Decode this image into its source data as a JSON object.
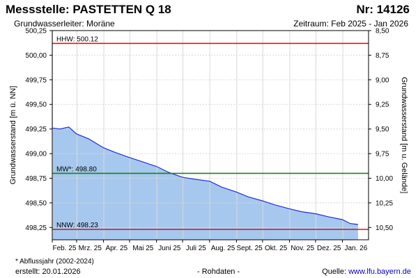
{
  "header": {
    "title": "Messstelle: PASTETTEN Q 18",
    "number": "Nr: 14126",
    "aquifer": "Grundwasserleiter:   Moräne",
    "period": "Zeitraum: Feb 2025 - Jan 2026"
  },
  "footer": {
    "footnote": "* Abflussjahr (2002-2024)",
    "created": "erstellt:  20.01.2026",
    "raw": "- Rohdaten -",
    "source_label": "Quelle: ",
    "source_url": "www.lfu.bayern.de"
  },
  "colors": {
    "fill": "#a7c8ee",
    "line": "#1f2fd6",
    "hhw": "#e01010",
    "nnw": "#e01010",
    "mw": "#0a8a0a",
    "grid": "#d8d8d8"
  },
  "chart_data": {
    "type": "area",
    "ylabel_left": "Grundwasserstand [m ü. NN]",
    "ylabel_right": "Grundwasserstand [m u. Gelände]",
    "ylim_left": [
      498.125,
      500.25
    ],
    "ylim_right": [
      10.625,
      8.5
    ],
    "left_ticks": [
      "500,25",
      "500,00",
      "499,75",
      "499,50",
      "499,25",
      "499,00",
      "498,75",
      "498,50",
      "498,25"
    ],
    "right_ticks": [
      "8,50",
      "8,75",
      "9,00",
      "9,25",
      "9,50",
      "9,75",
      "10,00",
      "10,25",
      "10,50"
    ],
    "x_ticks": [
      "Feb. 25",
      "Mrz. 25",
      "Apr. 25",
      "Mai 25",
      "Juni 25",
      "Juli 25",
      "Aug. 25",
      "Sept. 25",
      "Okt. 25",
      "Nov. 25",
      "Dez. 25",
      "Jan. 26"
    ],
    "grid": true,
    "reference_lines": [
      {
        "label": "HHW: 500.12",
        "value": 500.12,
        "kind": "hhw"
      },
      {
        "label": "MW*: 498.80",
        "value": 498.8,
        "kind": "mw"
      },
      {
        "label": "NNW: 498.23",
        "value": 498.23,
        "kind": "nnw"
      }
    ],
    "series": [
      {
        "x": [
          "2025-02-01",
          "2025-02-10",
          "2025-02-20",
          "2025-03-01",
          "2025-03-15",
          "2025-04-01",
          "2025-04-15",
          "2025-05-01",
          "2025-05-15",
          "2025-06-01",
          "2025-06-15",
          "2025-07-01",
          "2025-07-15",
          "2025-08-01",
          "2025-08-15",
          "2025-09-01",
          "2025-09-15",
          "2025-10-01",
          "2025-10-15",
          "2025-11-01",
          "2025-11-15",
          "2025-12-01",
          "2025-12-15",
          "2026-01-01",
          "2026-01-10",
          "2026-01-19"
        ],
        "y": [
          499.26,
          499.25,
          499.27,
          499.2,
          499.15,
          499.06,
          499.01,
          498.96,
          498.92,
          498.87,
          498.81,
          498.76,
          498.74,
          498.72,
          498.66,
          498.61,
          498.56,
          498.52,
          498.48,
          498.44,
          498.41,
          498.39,
          498.36,
          498.33,
          498.29,
          498.28
        ]
      }
    ]
  }
}
